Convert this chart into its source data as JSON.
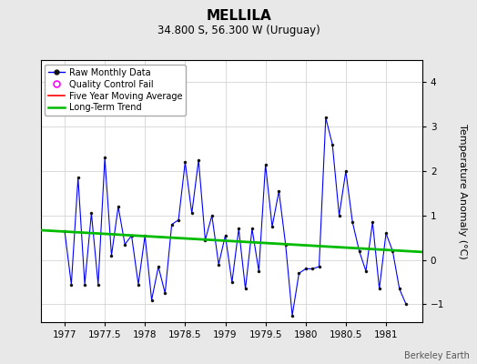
{
  "title": "MELLILA",
  "subtitle": "34.800 S, 56.300 W (Uruguay)",
  "ylabel": "Temperature Anomaly (°C)",
  "credit": "Berkeley Earth",
  "background_color": "#e8e8e8",
  "plot_bg_color": "#ffffff",
  "ylim": [
    -1.4,
    4.5
  ],
  "xlim": [
    1976.7,
    1981.45
  ],
  "yticks": [
    -1,
    0,
    1,
    2,
    3,
    4
  ],
  "xticks": [
    1977,
    1977.5,
    1978,
    1978.5,
    1979,
    1979.5,
    1980,
    1980.5,
    1981
  ],
  "raw_x": [
    1977.0,
    1977.083,
    1977.167,
    1977.25,
    1977.333,
    1977.417,
    1977.5,
    1977.583,
    1977.667,
    1977.75,
    1977.833,
    1977.917,
    1978.0,
    1978.083,
    1978.167,
    1978.25,
    1978.333,
    1978.417,
    1978.5,
    1978.583,
    1978.667,
    1978.75,
    1978.833,
    1978.917,
    1979.0,
    1979.083,
    1979.167,
    1979.25,
    1979.333,
    1979.417,
    1979.5,
    1979.583,
    1979.667,
    1979.75,
    1979.833,
    1979.917,
    1980.0,
    1980.083,
    1980.167,
    1980.25,
    1980.333,
    1980.417,
    1980.5,
    1980.583,
    1980.667,
    1980.75,
    1980.833,
    1980.917,
    1981.0,
    1981.083,
    1981.167,
    1981.25
  ],
  "raw_y": [
    0.65,
    -0.55,
    1.85,
    -0.55,
    1.05,
    -0.55,
    2.3,
    0.1,
    1.2,
    0.35,
    0.55,
    -0.55,
    0.55,
    -0.9,
    -0.15,
    -0.75,
    0.8,
    0.9,
    2.2,
    1.05,
    2.25,
    0.45,
    1.0,
    -0.1,
    0.55,
    -0.5,
    0.7,
    -0.65,
    0.7,
    -0.25,
    2.15,
    0.75,
    1.55,
    0.35,
    -1.25,
    -0.3,
    -0.2,
    -0.2,
    -0.15,
    3.2,
    2.6,
    1.0,
    2.0,
    0.85,
    0.2,
    -0.25,
    0.85,
    -0.65,
    0.6,
    0.2,
    -0.65,
    -1.0
  ],
  "trend_x": [
    1976.7,
    1981.45
  ],
  "trend_y": [
    0.67,
    0.18
  ],
  "raw_color": "#0000ff",
  "trend_color": "#00bb00",
  "moving_avg_color": "#ff0000",
  "qc_fail_color": "#ff00ff",
  "grid_color": "#cccccc",
  "title_fontsize": 11,
  "subtitle_fontsize": 8.5,
  "ylabel_fontsize": 8,
  "tick_fontsize": 7.5,
  "legend_fontsize": 7,
  "credit_fontsize": 7
}
